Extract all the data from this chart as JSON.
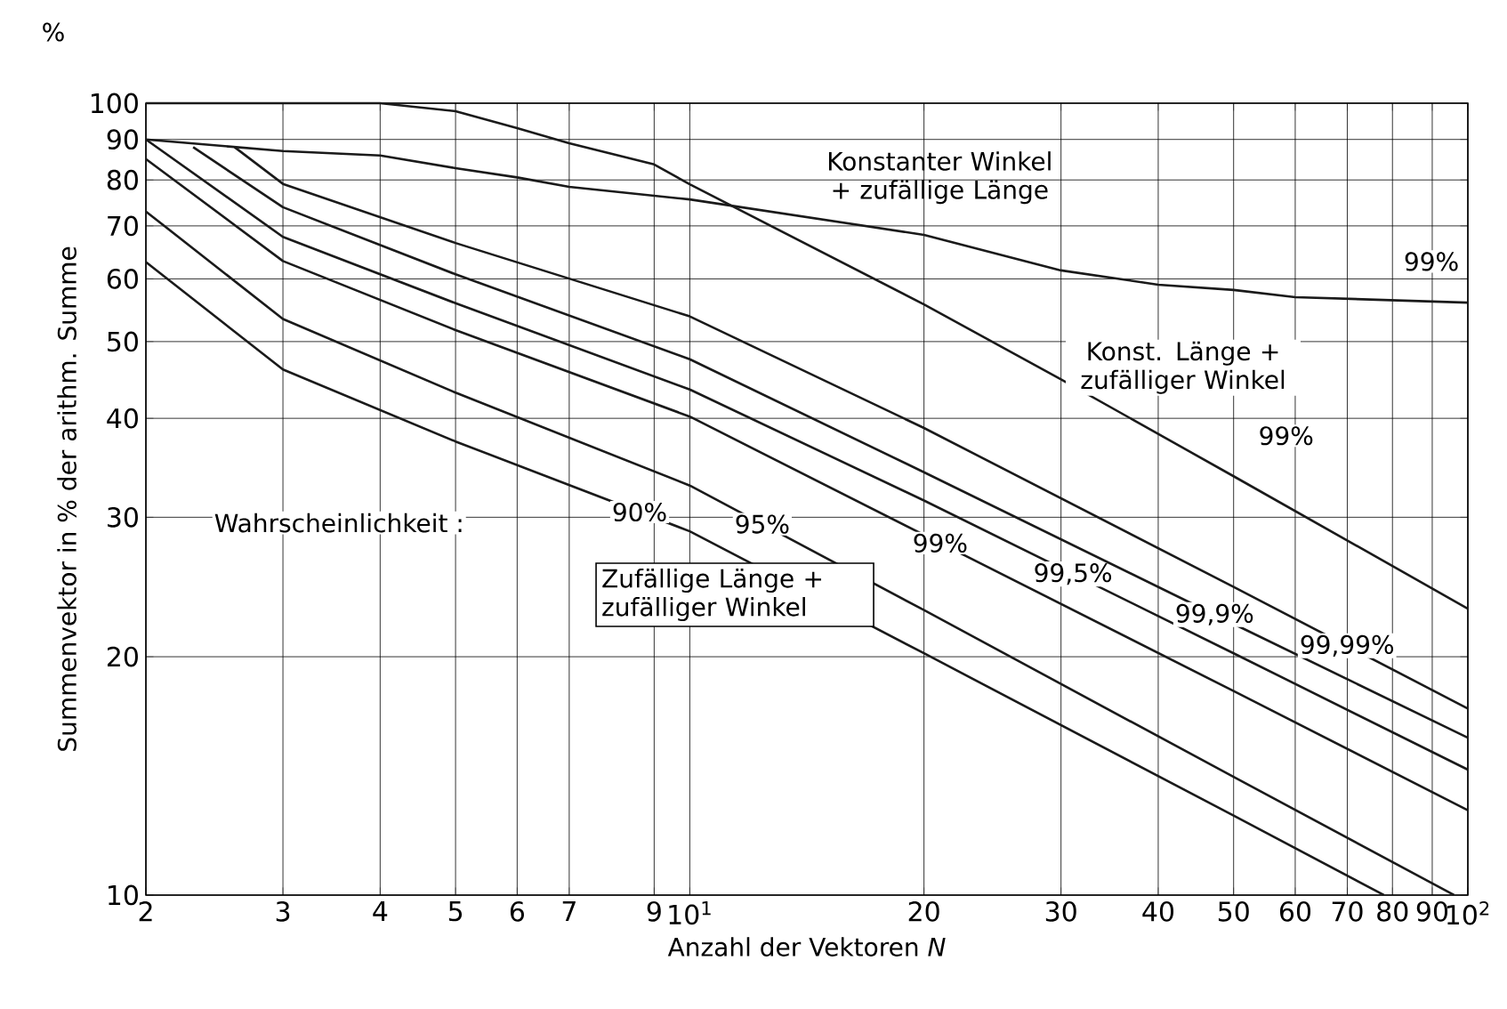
{
  "chart_data": {
    "type": "line",
    "xlabel": "Anzahl der Vektoren *N*",
    "ylabel": "Summenvektor in % der arithm. Summe",
    "log": "xy",
    "grid": true,
    "xlim": [
      2,
      100
    ],
    "ylim": [
      10,
      100
    ],
    "xticks": [
      2,
      3,
      4,
      5,
      6,
      7,
      9,
      {
        "value": 10,
        "label": "10$^{1}$"
      },
      20,
      30,
      40,
      50,
      60,
      70,
      80,
      90,
      {
        "value": 100,
        "label": "10$^{2}$"
      }
    ],
    "yticks": [
      10,
      20,
      30,
      40,
      50,
      60,
      70,
      80,
      90,
      100
    ],
    "series": [
      {
        "name": "90%",
        "color": "#1a1a1a",
        "x": [
          2,
          3,
          5,
          10,
          20,
          50,
          78
        ],
        "values": [
          63,
          46.1,
          37.4,
          28.8,
          20.2,
          12.6,
          10
        ]
      },
      {
        "name": "95%",
        "color": "#1a1a1a",
        "x": [
          2,
          3,
          5,
          10,
          20,
          50,
          96
        ],
        "values": [
          73,
          53.4,
          43.1,
          32.9,
          22.9,
          14.1,
          10
        ]
      },
      {
        "name": "99%",
        "color": "#1a1a1a",
        "x": [
          2,
          3,
          5,
          10,
          20,
          50,
          100
        ],
        "values": [
          85,
          63.2,
          51.7,
          40.2,
          28.5,
          18.1,
          12.8
        ]
      },
      {
        "name": "99,5%",
        "color": "#1a1a1a",
        "x": [
          2,
          3,
          5,
          10,
          20,
          50,
          100
        ],
        "values": [
          90,
          67.8,
          55.9,
          43.5,
          31.5,
          20.2,
          14.4
        ]
      },
      {
        "name": "99,9%",
        "color": "#1a1a1a",
        "x": [
          2.3,
          3,
          5,
          10,
          20,
          50,
          100
        ],
        "values": [
          88,
          73.9,
          60.8,
          47.5,
          34.2,
          22,
          15.8
        ]
      },
      {
        "name": "99,99%",
        "color": "#1a1a1a",
        "x": [
          2.6,
          3,
          5,
          10,
          20,
          50,
          100
        ],
        "values": [
          88,
          79.1,
          66.6,
          53.8,
          38.9,
          24.5,
          17.2
        ]
      },
      {
        "name": "Konstanter Winkel + zufällige Länge",
        "color": "#1a1a1a",
        "x": [
          2,
          3,
          4,
          5,
          6,
          7,
          10,
          20,
          30,
          40,
          50,
          60,
          100
        ],
        "values": [
          90,
          87,
          85.9,
          82.8,
          80.6,
          78.4,
          75.6,
          68.2,
          61.5,
          59,
          58.1,
          56.9,
          56
        ]
      },
      {
        "name": "Konst. Länge + zufälliger Winkel",
        "color": "#1a1a1a",
        "x": [
          2,
          3,
          4,
          5,
          6,
          7,
          9,
          10,
          20,
          30,
          50,
          100
        ],
        "values": [
          100,
          100,
          100,
          97.7,
          93,
          89,
          83.7,
          79,
          55.7,
          44.8,
          33.8,
          23
        ]
      }
    ],
    "annotations": [
      "Wahrscheinlichkeit :",
      "Zufällige Länge + zufälliger Winkel",
      "%",
      "99%",
      "99%"
    ]
  }
}
